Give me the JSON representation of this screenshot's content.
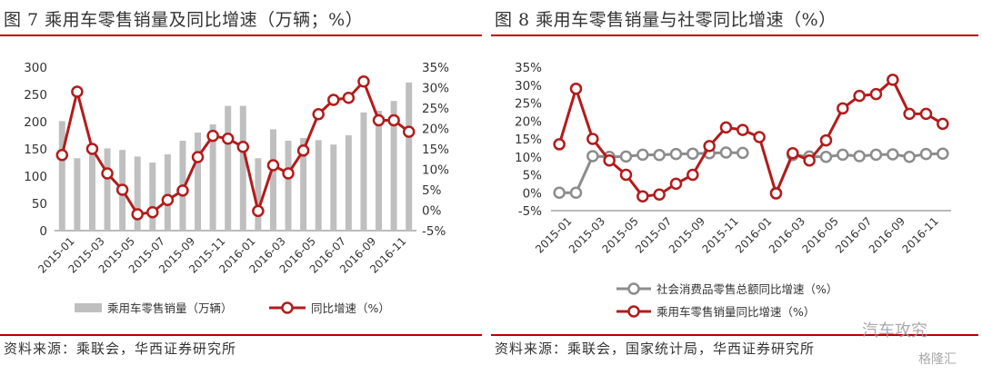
{
  "chart_data": [
    {
      "type": "bar",
      "title": "图 7 乘用车零售销量及同比增速（万辆；%）",
      "source": "资料来源：乘联会，华西证券研究所",
      "categories": [
        "2015-01",
        "2015-02",
        "2015-03",
        "2015-04",
        "2015-05",
        "2015-06",
        "2015-07",
        "2015-08",
        "2015-09",
        "2015-10",
        "2015-11",
        "2015-12",
        "2016-01",
        "2016-02",
        "2016-03",
        "2016-04",
        "2016-05",
        "2016-06",
        "2016-07",
        "2016-08",
        "2016-09",
        "2016-10",
        "2016-11",
        "2016-12"
      ],
      "x_tick_labels": [
        "2015-01",
        "2015-03",
        "2015-05",
        "2015-07",
        "2015-09",
        "2015-11",
        "2016-01",
        "2016-03",
        "2016-05",
        "2016-07",
        "2016-09",
        "2016-11"
      ],
      "left_axis": {
        "ylim": [
          0,
          300
        ],
        "ticks": [
          "0",
          "50",
          "100",
          "150",
          "200",
          "250",
          "300"
        ]
      },
      "right_axis": {
        "ylim": [
          -5,
          35
        ],
        "ticks": [
          "-5%",
          "0%",
          "5%",
          "10%",
          "15%",
          "20%",
          "25%",
          "30%",
          "35%"
        ]
      },
      "series": [
        {
          "name": "乘用车零售销量（万辆）",
          "kind": "bar",
          "axis": "left",
          "color": "#bfbfbf",
          "values": [
            201,
            133,
            158,
            151,
            148,
            136,
            125,
            140,
            165,
            180,
            195,
            229,
            229,
            133,
            186,
            165,
            170,
            166,
            158,
            175,
            217,
            220,
            238,
            272
          ]
        },
        {
          "name": "同比增速（%）",
          "kind": "line",
          "axis": "right",
          "color": "#b31b1b",
          "values": [
            13.5,
            29,
            15,
            9,
            5,
            -1,
            -0.5,
            2.5,
            4.8,
            13,
            18.2,
            17.5,
            15.5,
            -0.2,
            11,
            9,
            14.6,
            23.5,
            27,
            27.5,
            31.5,
            22,
            22,
            19.2
          ]
        }
      ],
      "legend": "bottom"
    },
    {
      "type": "line",
      "title": "图 8 乘用车零售销量与社零同比增速（%）",
      "source": "资料来源：乘联会，国家统计局，华西证券研究所",
      "categories": [
        "2015-01",
        "2015-02",
        "2015-03",
        "2015-04",
        "2015-05",
        "2015-06",
        "2015-07",
        "2015-08",
        "2015-09",
        "2015-10",
        "2015-11",
        "2015-12",
        "2016-01",
        "2016-02",
        "2016-03",
        "2016-04",
        "2016-05",
        "2016-06",
        "2016-07",
        "2016-08",
        "2016-09",
        "2016-10",
        "2016-11",
        "2016-12"
      ],
      "x_tick_labels": [
        "2015-01",
        "2015-03",
        "2015-05",
        "2015-07",
        "2015-09",
        "2015-11",
        "2016-01",
        "2016-03",
        "2016-05",
        "2016-07",
        "2016-09",
        "2016-11"
      ],
      "axis": {
        "ylim": [
          -5,
          35
        ],
        "ticks": [
          "-5%",
          "0%",
          "5%",
          "10%",
          "15%",
          "20%",
          "25%",
          "30%",
          "35%"
        ]
      },
      "series": [
        {
          "name": "社会消费品零售总额同比增速（%）",
          "color": "#8c8c8c",
          "values": [
            0,
            0,
            10.2,
            10,
            10.1,
            10.6,
            10.5,
            10.8,
            10.9,
            11,
            11.2,
            11.1,
            null,
            0,
            10.5,
            10.1,
            10,
            10.6,
            10.2,
            10.6,
            10.7,
            10,
            10.8,
            10.9
          ]
        },
        {
          "name": "乘用车零售销量同比增速（%）",
          "color": "#b31b1b",
          "values": [
            13.5,
            29,
            15,
            9,
            5,
            -1,
            -0.5,
            2.5,
            5,
            13,
            18.2,
            17.5,
            15.5,
            -0.2,
            11,
            9,
            14.6,
            23.5,
            27,
            27.5,
            31.5,
            22,
            22,
            19.2
          ]
        }
      ],
      "legend": "bottom-left"
    }
  ],
  "watermark": {
    "text1": "汽车攻究",
    "text2": "格隆汇"
  }
}
